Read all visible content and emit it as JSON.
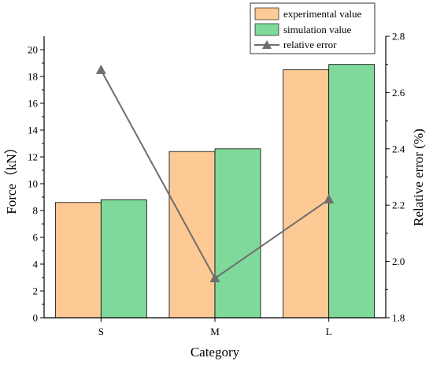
{
  "chart_data": {
    "type": "bar",
    "categories": [
      "S",
      "M",
      "L"
    ],
    "xlabel": "Category",
    "ylabel": "Force（kN）",
    "y2label": "Relative error (%)",
    "ylim": [
      0,
      21
    ],
    "y2lim": [
      1.8,
      2.8
    ],
    "yticks": [
      "0",
      "2",
      "4",
      "6",
      "8",
      "10",
      "12",
      "14",
      "16",
      "18",
      "20"
    ],
    "y2ticks": [
      "1.8",
      "2.0",
      "2.2",
      "2.4",
      "2.6",
      "2.8"
    ],
    "series": [
      {
        "name": "experimental value",
        "kind": "bar",
        "axis": "left",
        "color": "#FDC994",
        "values": [
          8.6,
          12.4,
          18.5
        ]
      },
      {
        "name": "simulation value",
        "kind": "bar",
        "axis": "left",
        "color": "#7FD99A",
        "values": [
          8.8,
          12.6,
          18.9
        ]
      },
      {
        "name": "relative error",
        "kind": "line",
        "axis": "right",
        "color": "#6E6E6E",
        "values": [
          2.68,
          1.94,
          2.22
        ]
      }
    ],
    "legend": {
      "position": "top-right"
    },
    "grid": false
  }
}
